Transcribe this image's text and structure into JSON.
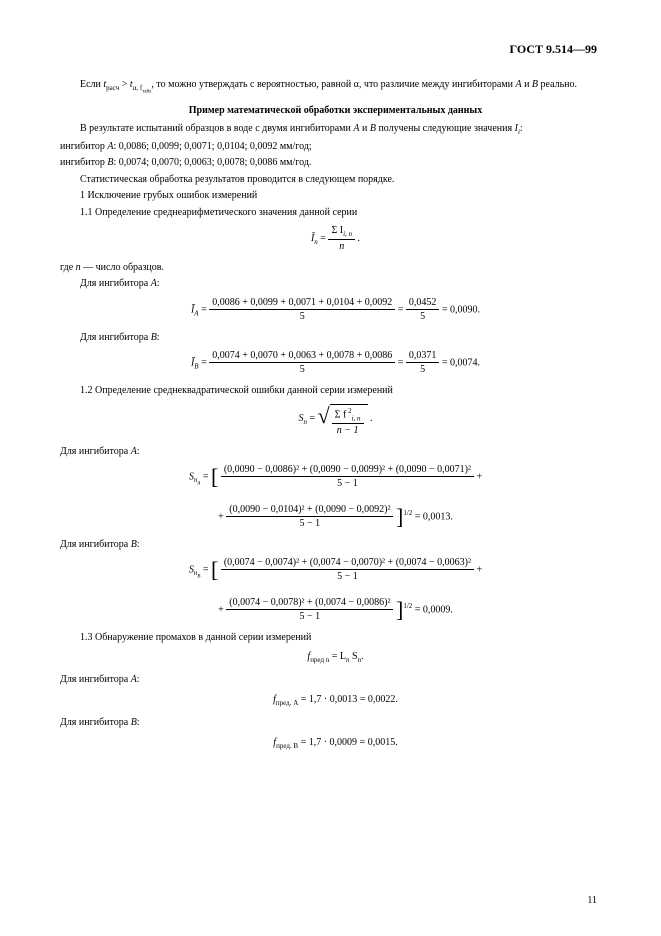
{
  "doc_id": "ГОСТ 9.514—99",
  "para1_a": "Если ",
  "para1_b": " > ",
  "para1_c": ", то можно утверждать с вероятностью, равной α, что различие между ингибиторами ",
  "para1_d": " и ",
  "para1_e": " реально.",
  "t_calc": "t",
  "t_calc_sub": "расч",
  "t_tab": "t",
  "t_tab_sub": "α, f",
  "t_tab_sub2": "табл",
  "A": "A",
  "B": "B",
  "section": "Пример математической обработки экспериментальных данных",
  "para2_a": "В результате испытаний образцов в воде с двумя ингибиторами ",
  "para2_b": " получены следующие значения ",
  "para2_c": ":",
  "I": "I",
  "i_sub": "i",
  "inhA_label": "ингибитор ",
  "inhA_vals": ": 0,0086; 0,0099; 0,0071; 0,0104; 0,0092 мм/год;",
  "inhB_vals": ": 0,0074; 0,0070; 0,0063; 0,0078; 0,0086 мм/год.",
  "para3": "Статистическая обработка результатов проводится в следующем порядке.",
  "para4": "1   Исключение грубых ошибок измерений",
  "para5": "1.1   Определение среднеарифметического значения данной серии",
  "f1_lhs": "Ī",
  "f1_lhs_sub": "n",
  "f1_num": "Σ I",
  "f1_num_sub": "i, n",
  "f1_den": "n",
  "para6_a": "где ",
  "para6_b": " — число образцов.",
  "n": "n",
  "forA": "Для ингибитора ",
  "forA_txt": ":",
  "f2_lhs": "Ī",
  "f2_lhs_sub": "A",
  "f2_num": "0,0086 + 0,0099 + 0,0071 + 0,0104 + 0,0092",
  "f2_den": "5",
  "f2_num2": "0,0452",
  "f2_den2": "5",
  "f2_res": " = 0,0090.",
  "forB": "Для ингибитора ",
  "forB_txt": ":",
  "f3_lhs": "Ī",
  "f3_lhs_sub": "B",
  "f3_num": "0,0074 + 0,0070 + 0,0063 + 0,0078 + 0,0086",
  "f3_den": "5",
  "f3_num2": "0,0371",
  "f3_den2": "5",
  "f3_res": " = 0,0074.",
  "para7": "1.2   Определение среднеквадратической ошибки данной серии измерений",
  "f4_lhs": "S",
  "f4_lhs_sub": "n",
  "f4_num": "Σ f",
  "f4_num_sup": " 2",
  "f4_num_sub": "i, n",
  "f4_den": "n − 1",
  "f5_lhs": "S",
  "f5_lhs_sub": "n",
  "f5_lhs_sub2": "A",
  "f5_num1": "(0,0090 − 0,0086)² + (0,0090 − 0,0099)² + (0,0090 − 0,0071)²",
  "f5_den": "5 − 1",
  "f5_num2": "(0,0090 − 0,0104)² + (0,0090 − 0,0092)²",
  "f5_exp": "1/2",
  "f5_res": " = 0,0013.",
  "f6_lhs_sub2": "B",
  "f6_num1": "(0,0074 − 0,0074)² + (0,0074 − 0,0070)² + (0,0074 − 0,0063)²",
  "f6_num2": "(0,0074 − 0,0078)² + (0,0074 − 0,0086)²",
  "f6_res": " = 0,0009.",
  "para8": "1.3   Обнаружение промахов в данной серии измерений",
  "f7_lhs": "f",
  "f7_lhs_sub": "пред  n",
  "f7_rhs": " =  L",
  "f7_rhs_sub": "n",
  "f7_rhs2": "  S",
  "f7_rhs2_sub": "n",
  "dot_end": ".",
  "f8_lhs_sub": "пред. A",
  "f8_rhs": " = 1,7 · 0,0013 = 0,0022.",
  "f9_lhs_sub": "пред. B",
  "f9_rhs": " = 1,7 · 0,0009 = 0,0015.",
  "page_num": "11"
}
